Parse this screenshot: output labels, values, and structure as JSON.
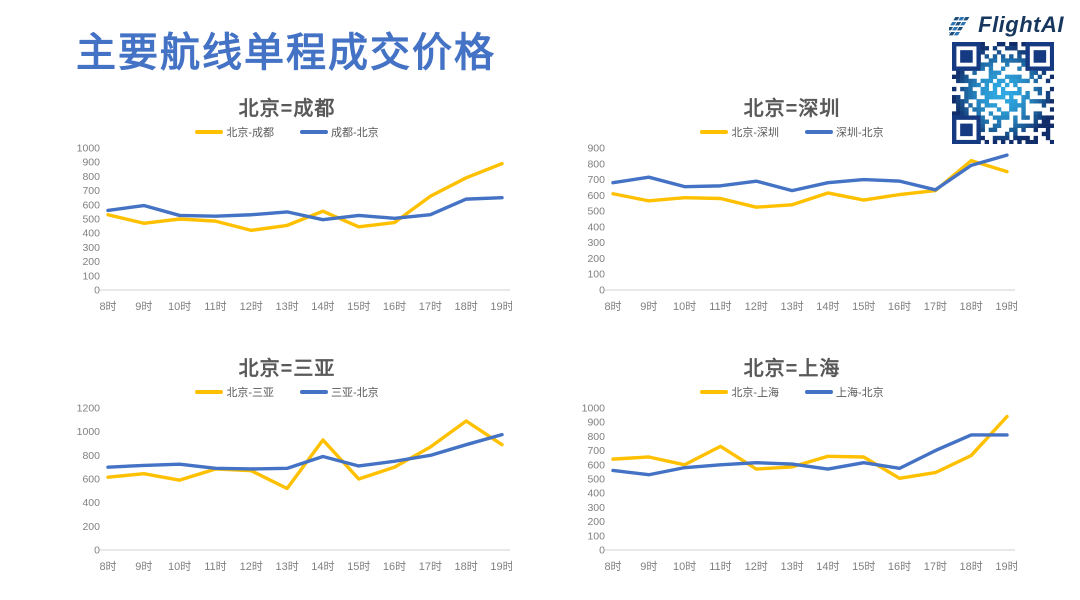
{
  "page": {
    "title": "主要航线单程成交价格",
    "logo_text": "FlightAI"
  },
  "header": {
    "logo_icon": "flightai-stripes-icon",
    "qr_icon": "qr-code"
  },
  "colors": {
    "accent_blue": "#4472C4",
    "series_yellow": "#FFC000",
    "series_blue": "#4472C4",
    "chart_title_grey": "#595959",
    "axis_text_grey": "#808080",
    "axis_line_grey": "#D9D9D9",
    "logo_navy": "#17375E"
  },
  "chart_data": [
    {
      "type": "line",
      "title": "北京=成都",
      "categories": [
        "8时",
        "9时",
        "10时",
        "11时",
        "12时",
        "13时",
        "14时",
        "15时",
        "16时",
        "17时",
        "18时",
        "19时"
      ],
      "ylim": [
        0,
        1000
      ],
      "ytick_step": 100,
      "grid": false,
      "legend_position": "top",
      "series": [
        {
          "name": "北京-成都",
          "color": "#FFC000",
          "values": [
            530,
            470,
            500,
            485,
            420,
            455,
            555,
            445,
            475,
            660,
            790,
            890
          ]
        },
        {
          "name": "成都-北京",
          "color": "#4472C4",
          "values": [
            560,
            595,
            525,
            520,
            530,
            550,
            495,
            525,
            505,
            530,
            640,
            650
          ]
        }
      ]
    },
    {
      "type": "line",
      "title": "北京=深圳",
      "categories": [
        "8时",
        "9时",
        "10时",
        "11时",
        "12时",
        "13时",
        "14时",
        "15时",
        "16时",
        "17时",
        "18时",
        "19时"
      ],
      "ylim": [
        0,
        900
      ],
      "ytick_step": 100,
      "grid": false,
      "legend_position": "top",
      "series": [
        {
          "name": "北京-深圳",
          "color": "#FFC000",
          "values": [
            610,
            565,
            585,
            580,
            525,
            540,
            615,
            570,
            605,
            630,
            820,
            750
          ]
        },
        {
          "name": "深圳-北京",
          "color": "#4472C4",
          "values": [
            680,
            715,
            655,
            660,
            690,
            630,
            680,
            700,
            690,
            635,
            790,
            855
          ]
        }
      ]
    },
    {
      "type": "line",
      "title": "北京=三亚",
      "categories": [
        "8时",
        "9时",
        "10时",
        "11时",
        "12时",
        "13时",
        "14时",
        "15时",
        "16时",
        "17时",
        "18时",
        "19时"
      ],
      "ylim": [
        0,
        1200
      ],
      "ytick_step": 200,
      "grid": false,
      "legend_position": "top",
      "series": [
        {
          "name": "北京-三亚",
          "color": "#FFC000",
          "values": [
            615,
            645,
            590,
            685,
            670,
            520,
            930,
            600,
            700,
            870,
            1090,
            890
          ]
        },
        {
          "name": "三亚-北京",
          "color": "#4472C4",
          "values": [
            700,
            715,
            725,
            690,
            685,
            690,
            790,
            710,
            750,
            800,
            890,
            975
          ]
        }
      ]
    },
    {
      "type": "line",
      "title": "北京=上海",
      "categories": [
        "8时",
        "9时",
        "10时",
        "11时",
        "12时",
        "13时",
        "14时",
        "15时",
        "16时",
        "17时",
        "18时",
        "19时"
      ],
      "ylim": [
        0,
        1000
      ],
      "ytick_step": 100,
      "grid": false,
      "legend_position": "top",
      "series": [
        {
          "name": "北京-上海",
          "color": "#FFC000",
          "values": [
            640,
            655,
            600,
            730,
            570,
            585,
            660,
            655,
            505,
            545,
            665,
            940
          ]
        },
        {
          "name": "上海-北京",
          "color": "#4472C4",
          "values": [
            560,
            530,
            580,
            600,
            615,
            605,
            570,
            615,
            575,
            700,
            810,
            810
          ]
        }
      ]
    }
  ]
}
